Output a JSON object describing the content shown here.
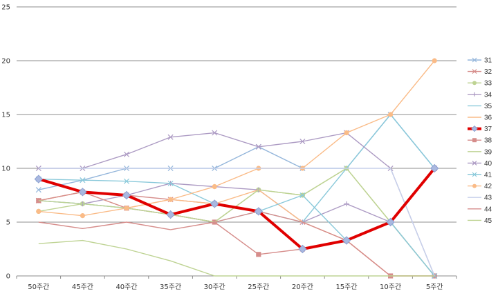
{
  "chart_data": {
    "type": "line",
    "title": "",
    "xlabel": "",
    "ylabel": "",
    "ylim": [
      0,
      25
    ],
    "yticks": [
      0,
      5,
      10,
      15,
      20,
      25
    ],
    "grid": "horizontal",
    "legend_position": "right",
    "categories": [
      "50주간",
      "45주간",
      "40주간",
      "35주간",
      "30주간",
      "25주간",
      "20주간",
      "15주간",
      "10주간",
      "5주간"
    ],
    "series": [
      {
        "name": "31",
        "color": "#5b8fc7",
        "marker": "x",
        "values": [
          8.0,
          8.9,
          10.0,
          10.0,
          10.0,
          12.0,
          10.0,
          10.0,
          15.0,
          10.0
        ]
      },
      {
        "name": "32",
        "color": "#c0504d",
        "marker": "x",
        "values": [
          7.0,
          7.8,
          7.5,
          7.1,
          6.7,
          6.0,
          5.0,
          3.3,
          5.0,
          10.0
        ]
      },
      {
        "name": "33",
        "color": "#9bbb59",
        "marker": "circle",
        "values": [
          6.0,
          6.7,
          6.3,
          5.7,
          5.0,
          8.0,
          7.5,
          10.0,
          5.0,
          0.0
        ]
      },
      {
        "name": "34",
        "color": "#8064a2",
        "marker": "plus",
        "values": [
          7.0,
          6.7,
          7.5,
          8.6,
          8.3,
          8.0,
          5.0,
          6.7,
          5.0,
          0.0
        ]
      },
      {
        "name": "35",
        "color": "#4bacc6",
        "marker": "none",
        "values": [
          7.0,
          6.7,
          6.3,
          5.7,
          5.0,
          6.0,
          5.0,
          10.0,
          15.0,
          10.0
        ]
      },
      {
        "name": "36",
        "color": "#f79646",
        "marker": "none",
        "values": [
          7.0,
          7.8,
          6.3,
          7.1,
          6.7,
          8.0,
          5.0,
          3.3,
          0.0,
          0.0
        ]
      },
      {
        "name": "37",
        "color": "#e00000",
        "marker": "diamond",
        "values": [
          9.0,
          7.8,
          7.5,
          5.7,
          6.7,
          6.0,
          2.5,
          3.3,
          5.0,
          10.0
        ]
      },
      {
        "name": "38",
        "color": "#c0504d",
        "marker": "square",
        "values": [
          7.0,
          7.8,
          6.3,
          5.7,
          5.0,
          2.0,
          2.5,
          3.3,
          0.0,
          0.0
        ]
      },
      {
        "name": "39",
        "color": "#9bbb59",
        "marker": "none",
        "values": [
          7.0,
          6.7,
          6.3,
          5.7,
          5.0,
          8.0,
          7.5,
          10.0,
          5.0,
          0.0
        ]
      },
      {
        "name": "40",
        "color": "#8064a2",
        "marker": "x",
        "values": [
          10.0,
          10.0,
          11.3,
          12.9,
          13.3,
          12.0,
          12.5,
          13.3,
          10.0,
          0.0
        ]
      },
      {
        "name": "41",
        "color": "#4bacc6",
        "marker": "x",
        "values": [
          9.0,
          8.9,
          8.8,
          8.6,
          6.7,
          6.0,
          7.5,
          3.3,
          5.0,
          0.0
        ]
      },
      {
        "name": "42",
        "color": "#f79646",
        "marker": "circle",
        "values": [
          6.0,
          5.6,
          6.3,
          7.1,
          8.3,
          10.0,
          10.0,
          13.3,
          15.0,
          20.0
        ]
      },
      {
        "name": "43",
        "color": "#a9b8e0",
        "marker": "none",
        "values": [
          10.0,
          10.0,
          10.0,
          10.0,
          10.0,
          10.0,
          10.0,
          10.0,
          10.0,
          0.0
        ]
      },
      {
        "name": "44",
        "color": "#c0504d",
        "marker": "none",
        "values": [
          5.0,
          4.4,
          5.0,
          4.3,
          5.0,
          6.0,
          5.0,
          3.3,
          0.0,
          0.0
        ]
      },
      {
        "name": "45",
        "color": "#9bbb59",
        "marker": "none",
        "values": [
          3.0,
          3.3,
          2.5,
          1.4,
          0.0,
          0.0,
          0.0,
          0.0,
          0.0,
          0.0
        ]
      }
    ]
  }
}
